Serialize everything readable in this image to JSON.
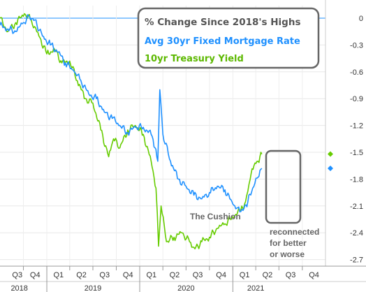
{
  "chart_data": {
    "type": "line",
    "title": "% Change Since 2018's Highs",
    "xlabel": "",
    "ylabel": "",
    "ylim": [
      -2.7,
      0.1
    ],
    "yticks": [
      "0",
      "-0.3",
      "-0.6",
      "-0.9",
      "-1.2",
      "-1.5",
      "-1.8",
      "-2.1",
      "-2.4",
      "-2.7"
    ],
    "xaxis": {
      "start": "2018-07-01",
      "end": "2021-12-31",
      "quarter_labels": [
        "Q3",
        "Q4",
        "Q1",
        "Q2",
        "Q3",
        "Q4",
        "Q1",
        "Q2",
        "Q3",
        "Q4",
        "Q1",
        "Q2",
        "Q3",
        "Q4"
      ],
      "year_labels": [
        "2018",
        "2019",
        "2020",
        "2021"
      ]
    },
    "grid": true,
    "series": [
      {
        "name": "Avg 30yr Fixed Mortgage Rate",
        "color": "#1e90ff",
        "points": [
          [
            "2018-07-01",
            -0.08
          ],
          [
            "2018-08-01",
            -0.12
          ],
          [
            "2018-09-01",
            -0.15
          ],
          [
            "2018-10-01",
            -0.05
          ],
          [
            "2018-10-25",
            0.02
          ],
          [
            "2018-11-15",
            -0.02
          ],
          [
            "2018-12-15",
            -0.2
          ],
          [
            "2019-01-15",
            -0.3
          ],
          [
            "2019-02-15",
            -0.38
          ],
          [
            "2019-03-15",
            -0.5
          ],
          [
            "2019-04-15",
            -0.58
          ],
          [
            "2019-05-15",
            -0.7
          ],
          [
            "2019-06-15",
            -0.85
          ],
          [
            "2019-07-15",
            -0.9
          ],
          [
            "2019-08-15",
            -1.05
          ],
          [
            "2019-09-15",
            -1.12
          ],
          [
            "2019-10-15",
            -1.2
          ],
          [
            "2019-11-15",
            -1.28
          ],
          [
            "2019-12-15",
            -1.22
          ],
          [
            "2020-01-15",
            -1.22
          ],
          [
            "2020-02-15",
            -1.3
          ],
          [
            "2020-03-01",
            -1.45
          ],
          [
            "2020-03-12",
            -1.6
          ],
          [
            "2020-03-20",
            -0.8
          ],
          [
            "2020-04-01",
            -1.3
          ],
          [
            "2020-05-01",
            -1.6
          ],
          [
            "2020-06-01",
            -1.8
          ],
          [
            "2020-07-01",
            -1.88
          ],
          [
            "2020-08-01",
            -1.98
          ],
          [
            "2020-09-01",
            -2.02
          ],
          [
            "2020-10-01",
            -1.95
          ],
          [
            "2020-11-01",
            -1.88
          ],
          [
            "2020-12-01",
            -1.92
          ],
          [
            "2021-01-01",
            -2.08
          ],
          [
            "2021-01-20",
            -2.12
          ],
          [
            "2021-02-10",
            -2.15
          ],
          [
            "2021-03-01",
            -2.05
          ],
          [
            "2021-03-20",
            -1.9
          ],
          [
            "2021-04-10",
            -1.78
          ],
          [
            "2021-04-25",
            -1.68
          ]
        ]
      },
      {
        "name": "10yr Treasury Yield",
        "color": "#66cc00",
        "points": [
          [
            "2018-07-01",
            0.0
          ],
          [
            "2018-08-01",
            -0.15
          ],
          [
            "2018-09-01",
            -0.05
          ],
          [
            "2018-10-05",
            0.05
          ],
          [
            "2018-11-01",
            -0.02
          ],
          [
            "2018-12-01",
            -0.2
          ],
          [
            "2019-01-01",
            -0.4
          ],
          [
            "2019-02-01",
            -0.35
          ],
          [
            "2019-03-01",
            -0.5
          ],
          [
            "2019-04-01",
            -0.48
          ],
          [
            "2019-05-01",
            -0.7
          ],
          [
            "2019-06-01",
            -0.9
          ],
          [
            "2019-07-01",
            -0.95
          ],
          [
            "2019-08-01",
            -1.25
          ],
          [
            "2019-09-01",
            -1.55
          ],
          [
            "2019-09-20",
            -1.35
          ],
          [
            "2019-10-15",
            -1.45
          ],
          [
            "2019-11-15",
            -1.25
          ],
          [
            "2019-12-15",
            -1.2
          ],
          [
            "2020-01-15",
            -1.3
          ],
          [
            "2020-02-15",
            -1.6
          ],
          [
            "2020-03-05",
            -1.9
          ],
          [
            "2020-03-15",
            -2.55
          ],
          [
            "2020-03-25",
            -2.1
          ],
          [
            "2020-04-15",
            -2.5
          ],
          [
            "2020-05-15",
            -2.45
          ],
          [
            "2020-06-15",
            -2.4
          ],
          [
            "2020-07-15",
            -2.5
          ],
          [
            "2020-08-05",
            -2.58
          ],
          [
            "2020-09-01",
            -2.5
          ],
          [
            "2020-10-01",
            -2.45
          ],
          [
            "2020-11-01",
            -2.35
          ],
          [
            "2020-12-01",
            -2.3
          ],
          [
            "2021-01-01",
            -2.22
          ],
          [
            "2021-02-01",
            -2.15
          ],
          [
            "2021-02-20",
            -2.05
          ],
          [
            "2021-03-10",
            -1.8
          ],
          [
            "2021-03-25",
            -1.65
          ],
          [
            "2021-04-10",
            -1.6
          ],
          [
            "2021-04-25",
            -1.52
          ]
        ]
      }
    ],
    "annotations": [
      "The Cushion",
      "reconnected",
      "for better",
      "or worse"
    ]
  }
}
